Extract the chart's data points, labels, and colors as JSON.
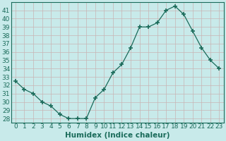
{
  "x": [
    0,
    1,
    2,
    3,
    4,
    5,
    6,
    7,
    8,
    9,
    10,
    11,
    12,
    13,
    14,
    15,
    16,
    17,
    18,
    19,
    20,
    21,
    22,
    23
  ],
  "y": [
    32.5,
    31.5,
    31.0,
    30.0,
    29.5,
    28.5,
    28.0,
    28.0,
    28.0,
    30.5,
    31.5,
    33.5,
    34.5,
    36.5,
    39.0,
    39.0,
    39.5,
    41.0,
    41.5,
    40.5,
    38.5,
    36.5,
    35.0,
    34.0
  ],
  "xlabel": "Humidex (Indice chaleur)",
  "ylim": [
    27.5,
    42.0
  ],
  "xlim": [
    -0.5,
    23.5
  ],
  "yticks": [
    28,
    29,
    30,
    31,
    32,
    33,
    34,
    35,
    36,
    37,
    38,
    39,
    40,
    41
  ],
  "xticks": [
    0,
    1,
    2,
    3,
    4,
    5,
    6,
    7,
    8,
    9,
    10,
    11,
    12,
    13,
    14,
    15,
    16,
    17,
    18,
    19,
    20,
    21,
    22,
    23
  ],
  "line_color": "#1a6b5a",
  "marker_color": "#1a6b5a",
  "bg_color": "#c8eaea",
  "grid_color": "#c8b4b4",
  "tick_label_color": "#1a6b5a",
  "xlabel_color": "#1a6b5a",
  "font_size": 6.5,
  "xlabel_fontsize": 7.5
}
